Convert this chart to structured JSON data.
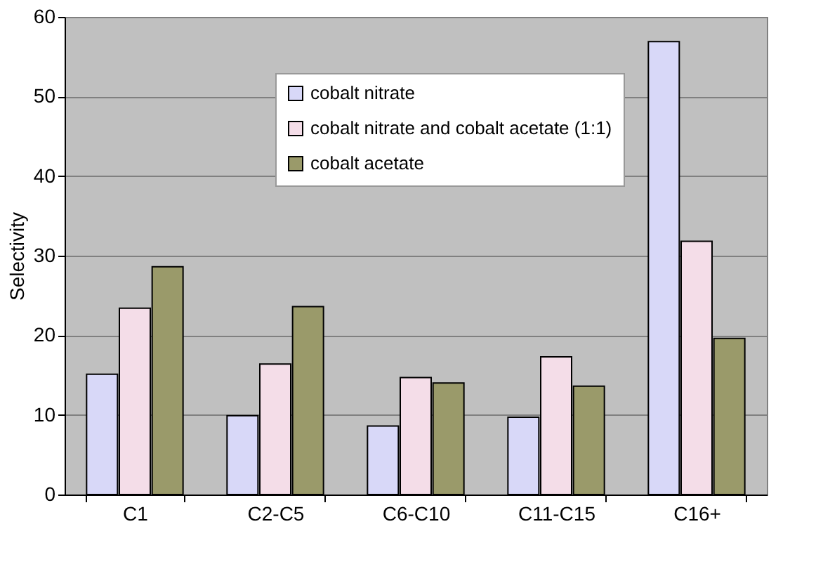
{
  "chart_data": {
    "type": "bar",
    "ylabel": "Selectivity",
    "categories": [
      "C1",
      "C2-C5",
      "C6-C10",
      "C11-C15",
      "C16+"
    ],
    "series": [
      {
        "name": "cobalt nitrate",
        "color": "#d8d8f8",
        "values": [
          15.1,
          9.9,
          8.6,
          9.7,
          56.9
        ]
      },
      {
        "name": "cobalt nitrate and cobalt acetate (1:1)",
        "color": "#f4dde8",
        "values": [
          23.4,
          16.4,
          14.7,
          17.3,
          31.8
        ]
      },
      {
        "name": "cobalt acetate",
        "color": "#9a9a6a",
        "values": [
          28.6,
          23.6,
          14.0,
          13.6,
          19.6
        ]
      }
    ],
    "ylim": [
      0,
      60
    ],
    "yticks": [
      0,
      10,
      20,
      30,
      40,
      50,
      60
    ],
    "grid": "y",
    "legend": "top"
  }
}
